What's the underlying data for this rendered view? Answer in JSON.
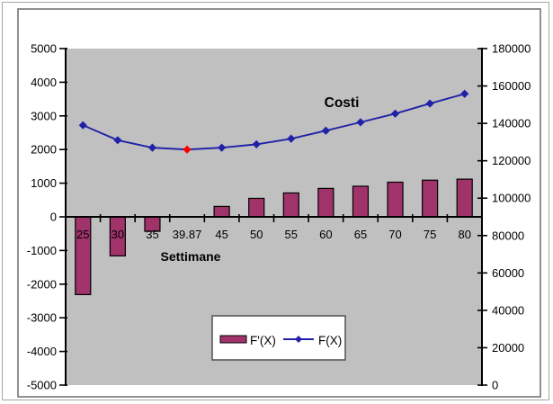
{
  "window": {
    "frame_color": "#a6a6a6",
    "chart_border_color": "#757575",
    "background": "#ffffff"
  },
  "chart_data": {
    "type": "combo-bar-line",
    "annotation": "Costi",
    "xlabel": "Settimane",
    "plot_bg": "#c0c0c0",
    "grid": "off",
    "legend_position": "bottom-center-inside",
    "categories": [
      "25",
      "30",
      "35",
      "39.87",
      "45",
      "50",
      "55",
      "60",
      "65",
      "70",
      "75",
      "80"
    ],
    "series": [
      {
        "name": "F'(X)",
        "type": "bar",
        "axis": "left",
        "color": "#a1336b",
        "border_color": "#000000",
        "values": [
          -2310,
          -1160,
          -430,
          0,
          310,
          550,
          710,
          845,
          910,
          1030,
          1090,
          1120
        ]
      },
      {
        "name": "F(X)",
        "type": "line",
        "axis": "right",
        "color": "#2121a8",
        "marker": "diamond",
        "values": [
          139000,
          131000,
          127000,
          126000,
          127000,
          128800,
          131800,
          136100,
          140600,
          145200,
          150600,
          155800
        ],
        "highlight": {
          "index": 3,
          "color": "#ff0000",
          "meaning": "minimum point at x = 39.87"
        }
      }
    ],
    "axes": {
      "left": {
        "min": -5000,
        "max": 5000,
        "step": 1000,
        "tick_labels": [
          "5000",
          "4000",
          "3000",
          "2000",
          "1000",
          "0",
          "-1000",
          "-2000",
          "-3000",
          "-4000",
          "-5000"
        ]
      },
      "right": {
        "min": 0,
        "max": 180000,
        "step": 20000,
        "tick_labels": [
          "180000",
          "160000",
          "140000",
          "120000",
          "100000",
          "80000",
          "60000",
          "40000",
          "20000",
          "0"
        ]
      }
    },
    "legend": {
      "items": [
        {
          "label": "F'(X)",
          "swatch": "bar"
        },
        {
          "label": "F(X)",
          "swatch": "line-diamond"
        }
      ]
    }
  }
}
